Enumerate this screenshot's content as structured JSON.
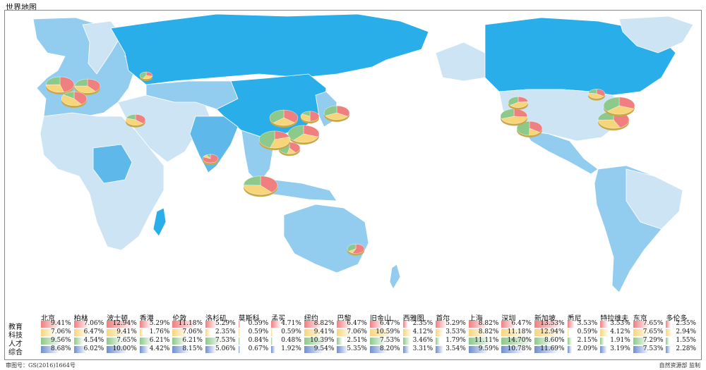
{
  "title": "世界地图",
  "footer": {
    "approval": "审图号：GS(2016)1664号",
    "supervisor": "自然资源部 监制"
  },
  "colors": {
    "ocean": "#ffffff",
    "land_light": "#cce4f4",
    "land_mid": "#92cdef",
    "land_dark": "#5fb8ea",
    "land_bright": "#29aeea",
    "edu": "#f07f80",
    "tech": "#f7d57a",
    "talent": "#8cc98a",
    "overall": "#6f8fd0"
  },
  "table": {
    "rows": [
      "教育",
      "科技",
      "人才",
      "综合"
    ],
    "cities": [
      {
        "name": "北京",
        "values": [
          "9.41%",
          "7.06%",
          "9.56%",
          "8.68%"
        ]
      },
      {
        "name": "柏林",
        "values": [
          "7.06%",
          "6.47%",
          "4.54%",
          "6.02%"
        ]
      },
      {
        "name": "波士顿",
        "values": [
          "12.94%",
          "9.41%",
          "7.65%",
          "10.00%"
        ]
      },
      {
        "name": "香港",
        "values": [
          "5.29%",
          "1.76%",
          "6.21%",
          "4.42%"
        ]
      },
      {
        "name": "伦敦",
        "values": [
          "11.18%",
          "7.06%",
          "6.21%",
          "8.15%"
        ]
      },
      {
        "name": "洛杉矶",
        "values": [
          "5.29%",
          "2.35%",
          "7.53%",
          "5.06%"
        ]
      },
      {
        "name": "莫斯科",
        "values": [
          "0.59%",
          "0.59%",
          "0.84%",
          "0.67%"
        ]
      },
      {
        "name": "孟买",
        "values": [
          "4.71%",
          "0.59%",
          "0.48%",
          "1.92%"
        ]
      },
      {
        "name": "纽约",
        "values": [
          "8.82%",
          "9.41%",
          "10.39%",
          "9.54%"
        ]
      },
      {
        "name": "巴黎",
        "values": [
          "6.47%",
          "7.06%",
          "2.51%",
          "5.35%"
        ]
      },
      {
        "name": "旧金山",
        "values": [
          "6.47%",
          "10.59%",
          "7.53%",
          "8.20%"
        ]
      },
      {
        "name": "西雅图",
        "values": [
          "2.35%",
          "4.12%",
          "3.46%",
          "3.31%"
        ]
      },
      {
        "name": "首尔",
        "values": [
          "5.29%",
          "3.53%",
          "1.79%",
          "3.54%"
        ]
      },
      {
        "name": "上海",
        "values": [
          "8.82%",
          "8.82%",
          "11.11%",
          "9.59%"
        ]
      },
      {
        "name": "深圳",
        "values": [
          "6.47%",
          "11.18%",
          "14.70%",
          "10.78%"
        ]
      },
      {
        "name": "新加坡",
        "values": [
          "13.53%",
          "12.94%",
          "8.60%",
          "11.69%"
        ]
      },
      {
        "name": "悉尼",
        "values": [
          "3.53%",
          "0.59%",
          "2.15%",
          "2.09%"
        ]
      },
      {
        "name": "特拉维夫",
        "values": [
          "3.53%",
          "4.12%",
          "1.91%",
          "3.19%"
        ]
      },
      {
        "name": "东京",
        "values": [
          "7.65%",
          "7.65%",
          "7.29%",
          "7.53%"
        ]
      },
      {
        "name": "多伦多",
        "values": [
          "2.35%",
          "2.94%",
          "1.55%",
          "2.28%"
        ]
      }
    ]
  },
  "pies": [
    {
      "city": "北京",
      "weights": [
        9.41,
        7.06,
        9.56
      ]
    },
    {
      "city": "柏林",
      "weights": [
        7.06,
        6.47,
        4.54
      ]
    },
    {
      "city": "波士顿",
      "weights": [
        12.94,
        9.41,
        7.65
      ]
    },
    {
      "city": "香港",
      "weights": [
        5.29,
        1.76,
        6.21
      ]
    },
    {
      "city": "伦敦",
      "weights": [
        11.18,
        7.06,
        6.21
      ]
    },
    {
      "city": "洛杉矶",
      "weights": [
        5.29,
        2.35,
        7.53
      ]
    },
    {
      "city": "莫斯科",
      "weights": [
        0.59,
        0.59,
        0.84
      ]
    },
    {
      "city": "孟买",
      "weights": [
        4.71,
        0.59,
        0.48
      ]
    },
    {
      "city": "纽约",
      "weights": [
        8.82,
        9.41,
        10.39
      ]
    },
    {
      "city": "巴黎",
      "weights": [
        6.47,
        7.06,
        2.51
      ]
    },
    {
      "city": "旧金山",
      "weights": [
        6.47,
        10.59,
        7.53
      ]
    },
    {
      "city": "西雅图",
      "weights": [
        2.35,
        4.12,
        3.46
      ]
    },
    {
      "city": "首尔",
      "weights": [
        5.29,
        3.53,
        1.79
      ]
    },
    {
      "city": "上海",
      "weights": [
        8.82,
        8.82,
        11.11
      ]
    },
    {
      "city": "深圳",
      "weights": [
        6.47,
        11.18,
        14.7
      ]
    },
    {
      "city": "新加坡",
      "weights": [
        13.53,
        12.94,
        8.6
      ]
    },
    {
      "city": "悉尼",
      "weights": [
        3.53,
        0.59,
        2.15
      ]
    },
    {
      "city": "特拉维夫",
      "weights": [
        3.53,
        4.12,
        1.91
      ]
    },
    {
      "city": "东京",
      "weights": [
        7.65,
        7.65,
        7.29
      ]
    },
    {
      "city": "多伦多",
      "weights": [
        2.35,
        2.94,
        1.55
      ]
    }
  ]
}
